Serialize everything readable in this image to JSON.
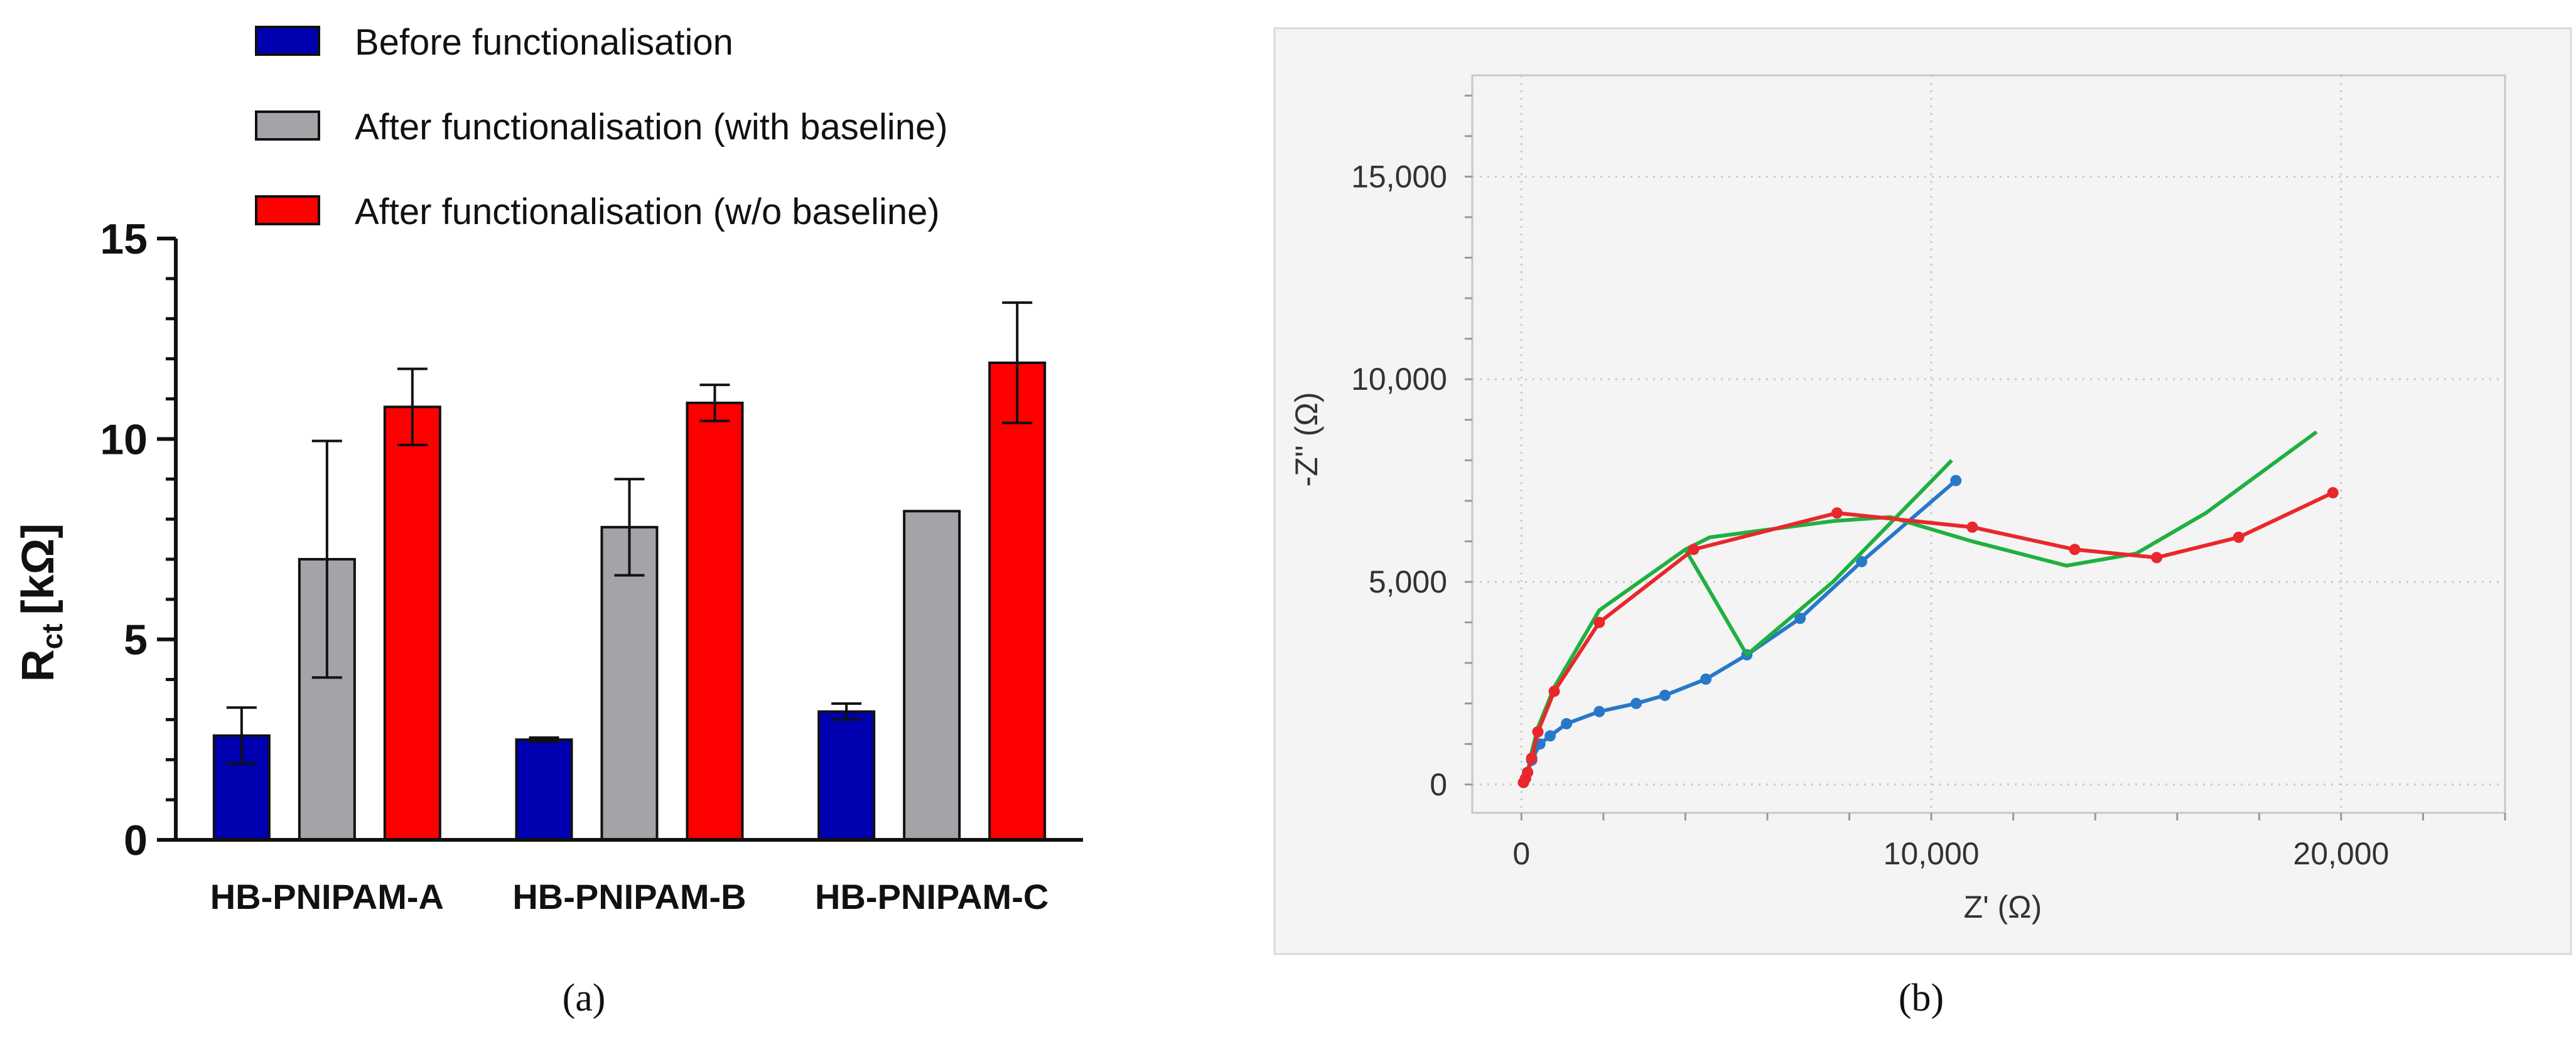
{
  "chart_data": [
    {
      "type": "bar",
      "panel_label": "(a)",
      "ylabel_main": "R",
      "ylabel_sub": "ct",
      "ylabel_unit": "[kΩ]",
      "xlabel": "",
      "ylim": [
        0,
        15
      ],
      "yticks": [
        0,
        5,
        10,
        15
      ],
      "ytick_labels": [
        "0",
        "5",
        "10",
        "15"
      ],
      "categories": [
        "HB-PNIPAM-A",
        "HB-PNIPAM-B",
        "HB-PNIPAM-C"
      ],
      "legend_position": "top",
      "series": [
        {
          "name": "Before functionalisation",
          "color": "#0000b0",
          "values": [
            2.6,
            2.5,
            3.2
          ],
          "errors": [
            0.7,
            0.05,
            0.2
          ]
        },
        {
          "name": "After functionalisation (with baseline)",
          "color": "#a3a3a8",
          "values": [
            7.0,
            7.8,
            8.2
          ],
          "errors": [
            2.95,
            1.2,
            0
          ]
        },
        {
          "name": "After functionalisation (w/o baseline)",
          "color": "#ff0000",
          "values": [
            10.8,
            10.9,
            11.9
          ],
          "errors": [
            0.95,
            0.45,
            1.5
          ]
        }
      ]
    },
    {
      "type": "line",
      "panel_label": "(b)",
      "xlabel": "Z' (Ω)",
      "ylabel": "-Z'' (Ω)",
      "xlim": [
        -1200,
        24000
      ],
      "ylim": [
        -700,
        17500
      ],
      "xticks": [
        0,
        10000,
        20000
      ],
      "xtick_labels": [
        "0",
        "10,000",
        "20,000"
      ],
      "yticks": [
        0,
        5000,
        10000,
        15000
      ],
      "ytick_labels": [
        "0",
        "5,000",
        "10,000",
        "15,000"
      ],
      "grid": true,
      "series": [
        {
          "color": "#2878c8",
          "markers": true,
          "x": [
            50,
            100,
            150,
            250,
            450,
            700,
            1100,
            1900,
            2800,
            3500,
            4500,
            5500,
            6800,
            8300,
            10600
          ],
          "y": [
            50,
            150,
            300,
            600,
            1000,
            1200,
            1500,
            1800,
            2000,
            2200,
            2600,
            3200,
            4100,
            5500,
            7500
          ]
        },
        {
          "color": "#20b040",
          "markers": false,
          "x": [
            80,
            150,
            250,
            400,
            800,
            1900,
            4000,
            4600,
            7600,
            9000,
            11000,
            13300,
            15000,
            16700,
            19400,
            10500
          ],
          "y": [
            100,
            300,
            800,
            1400,
            2400,
            4300,
            5800,
            6100,
            6500,
            6600,
            6000,
            5400,
            5700,
            6700,
            8700,
            8000
          ],
          "x_order_note": ""
        },
        {
          "color": "#e8282c",
          "markers": true,
          "x": [
            50,
            100,
            150,
            250,
            400,
            800,
            1900,
            4200,
            7700,
            11000,
            13500,
            15500,
            17500,
            19800
          ],
          "y": [
            50,
            150,
            300,
            650,
            1300,
            2300,
            4000,
            5800,
            6700,
            6350,
            5800,
            5600,
            6100,
            7200
          ]
        }
      ]
    }
  ]
}
